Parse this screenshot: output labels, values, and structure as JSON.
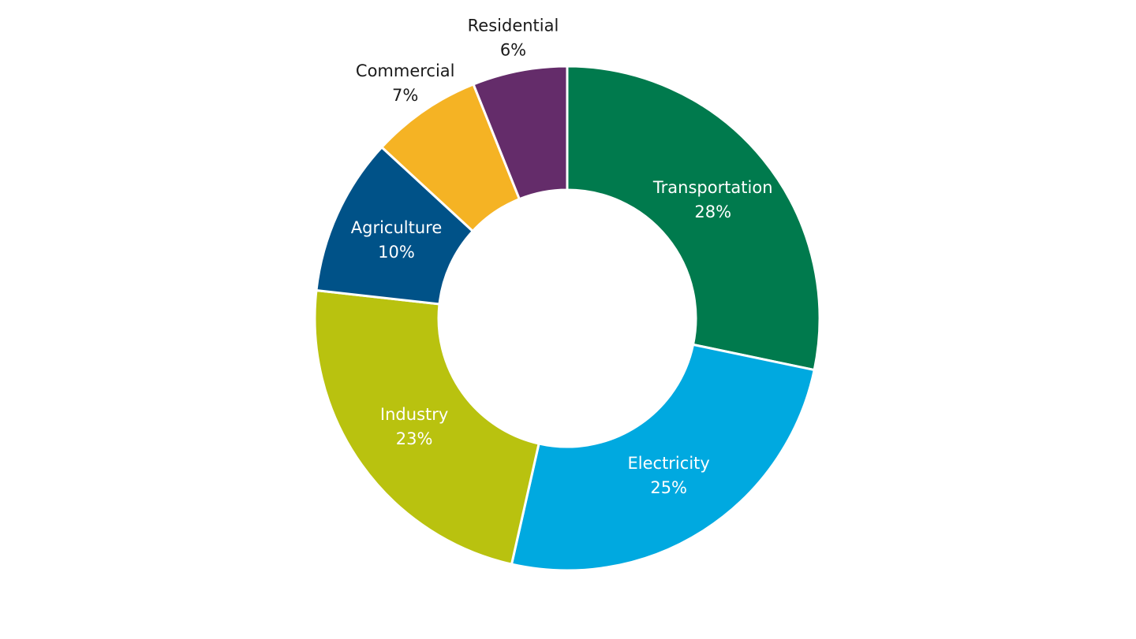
{
  "chart_data": {
    "type": "donut",
    "categories": [
      "Transportation",
      "Electricity",
      "Industry",
      "Agriculture",
      "Commercial",
      "Residential"
    ],
    "values": [
      28,
      25,
      23,
      10,
      7,
      6
    ],
    "value_labels": [
      "28%",
      "25%",
      "23%",
      "10%",
      "7%",
      "6%"
    ],
    "colors": [
      "#007a4d",
      "#00a9e0",
      "#b9c20f",
      "#005288",
      "#f5b324",
      "#642c6a"
    ]
  }
}
